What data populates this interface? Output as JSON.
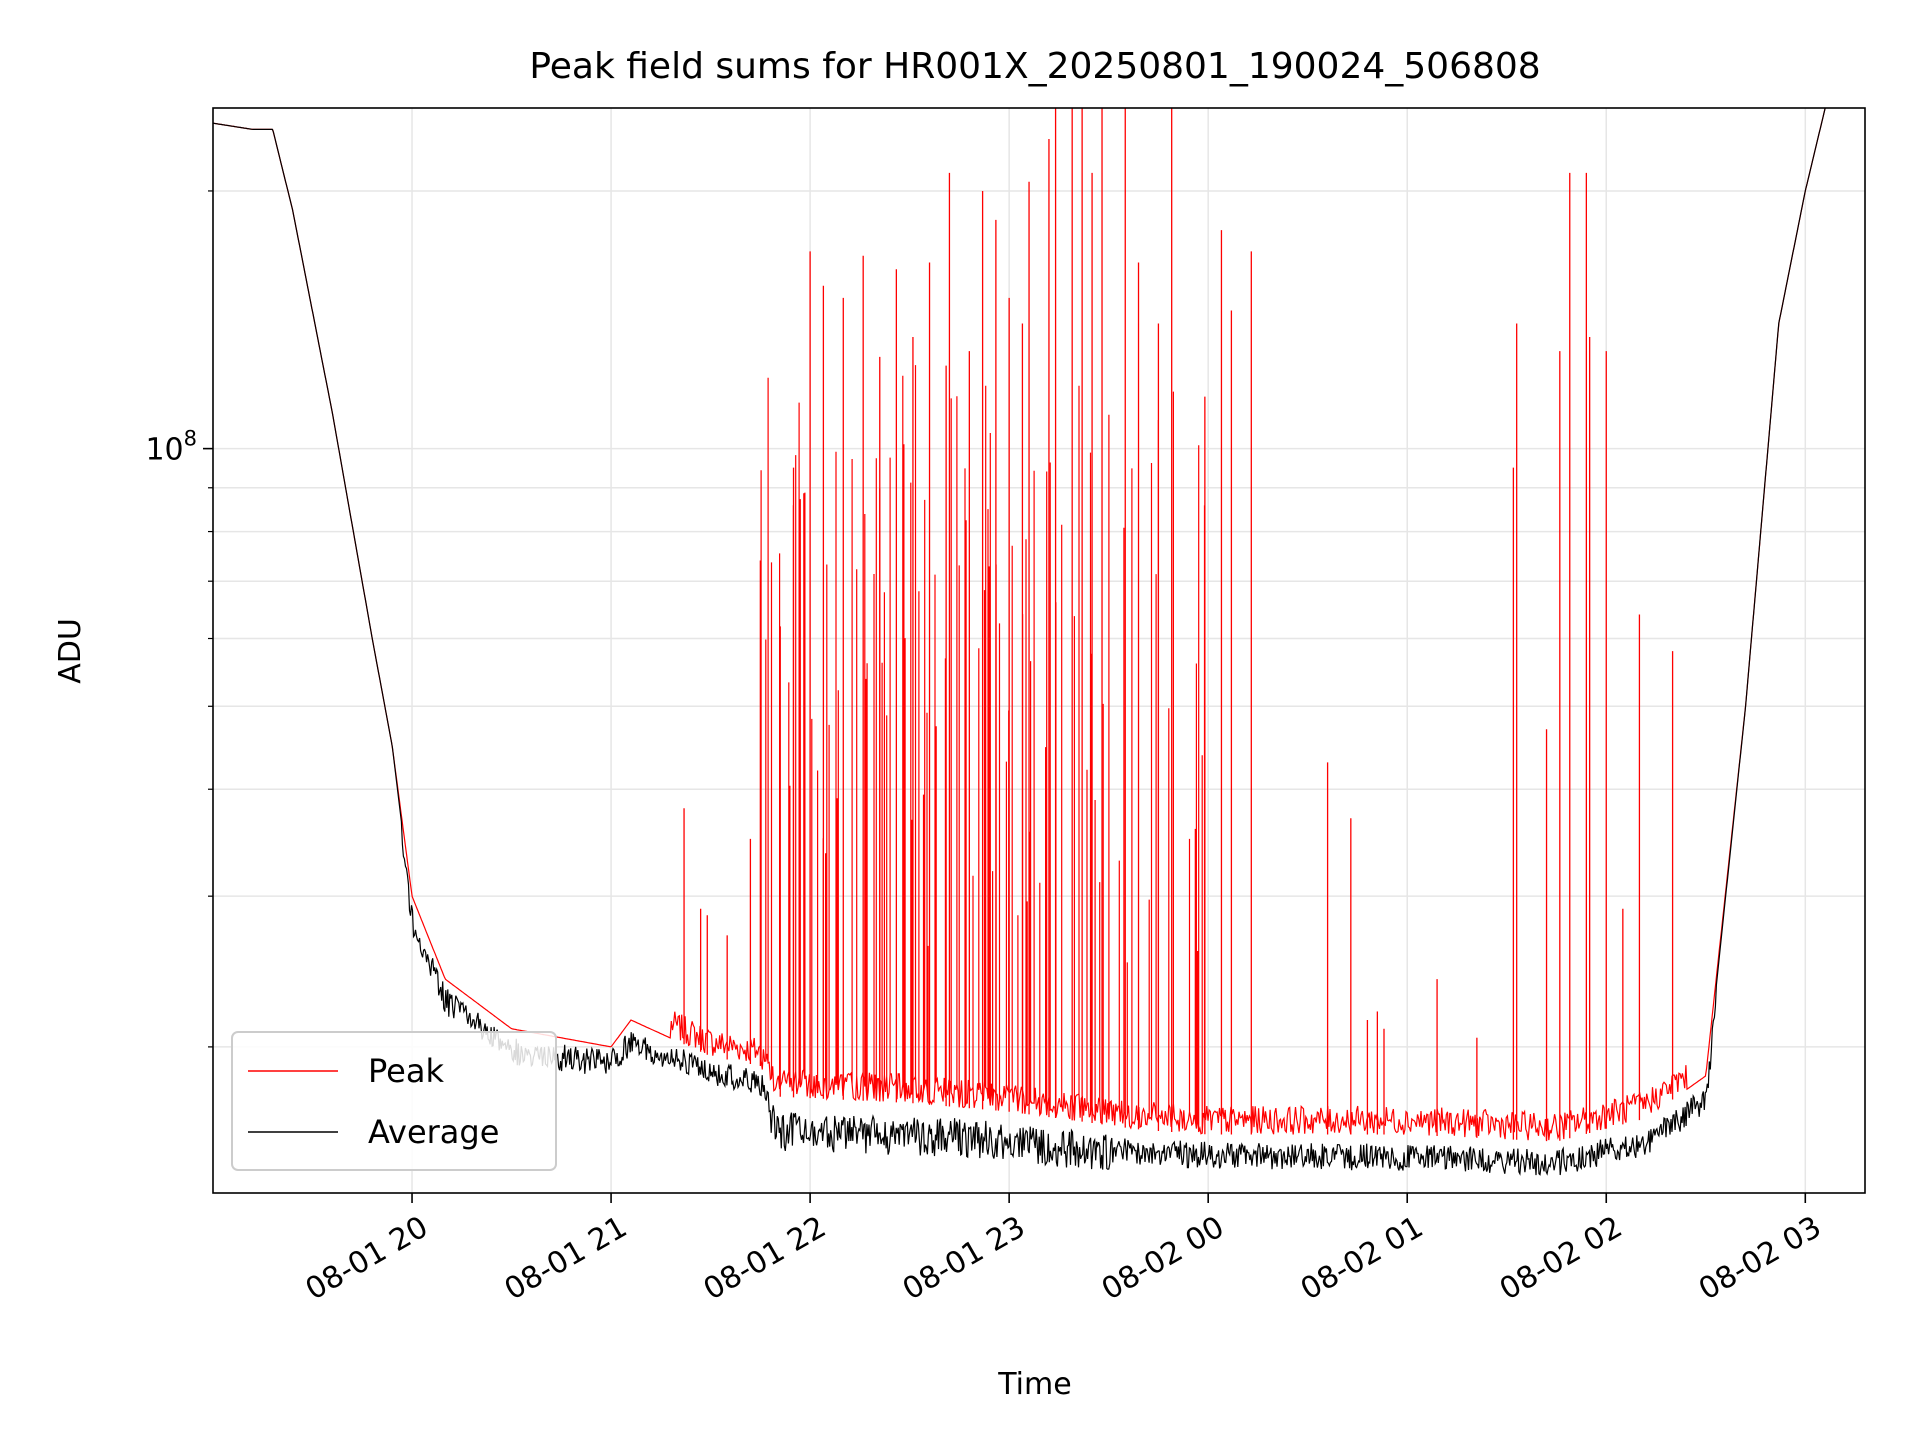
{
  "chart_data": {
    "type": "line",
    "title": "Peak field sums for HR001X_20250801_190024_506808",
    "xlabel": "Time",
    "ylabel": "ADU",
    "yscale": "log",
    "grid": true,
    "legend_placement": "lower-left",
    "x_tick_labels": [
      "08-01 20",
      "08-01 21",
      "08-01 22",
      "08-01 23",
      "08-02 00",
      "08-02 01",
      "08-02 02",
      "08-02 03"
    ],
    "x_ticks": [
      "2025-08-01 20:00",
      "2025-08-01 21:00",
      "2025-08-01 22:00",
      "2025-08-01 23:00",
      "2025-08-02 00:00",
      "2025-08-02 01:00",
      "2025-08-02 02:00",
      "2025-08-02 03:00"
    ],
    "xlim": [
      "2025-08-01 19:00",
      "2025-08-02 03:18"
    ],
    "y_tick_labels": [
      {
        "base": "10",
        "exp": "8"
      }
    ],
    "y_ticks": [
      100000000
    ],
    "ylim": [
      13500000,
      250000000
    ],
    "series": [
      {
        "name": "Peak",
        "color": "#ff0000",
        "points": [
          [
            "2025-08-01 19:00",
            240000000
          ],
          [
            "2025-08-01 19:12",
            236000000
          ],
          [
            "2025-08-01 19:18",
            236000000
          ],
          [
            "2025-08-01 19:24",
            190000000
          ],
          [
            "2025-08-01 19:36",
            110000000
          ],
          [
            "2025-08-01 19:48",
            60000000
          ],
          [
            "2025-08-01 19:54",
            45000000
          ],
          [
            "2025-08-01 20:00",
            30000000
          ],
          [
            "2025-08-01 20:10",
            24000000
          ],
          [
            "2025-08-01 20:30",
            21000000
          ],
          [
            "2025-08-01 21:00",
            20000000
          ],
          [
            "2025-08-01 21:06",
            21500000
          ],
          [
            "2025-08-01 21:30",
            19500000
          ],
          [
            "2025-08-01 21:45",
            19000000
          ],
          [
            "2025-08-01 21:50",
            17500000
          ],
          [
            "2025-08-01 22:30",
            17200000
          ],
          [
            "2025-08-01 23:00",
            16800000
          ],
          [
            "2025-08-01 23:40",
            16000000
          ],
          [
            "2025-08-02 00:00",
            15800000
          ],
          [
            "2025-08-02 01:00",
            15800000
          ],
          [
            "2025-08-02 01:45",
            15500000
          ],
          [
            "2025-08-02 02:12",
            16500000
          ],
          [
            "2025-08-02 02:30",
            18500000
          ],
          [
            "2025-08-02 02:42",
            50000000
          ],
          [
            "2025-08-02 02:52",
            140000000
          ],
          [
            "2025-08-02 03:00",
            200000000
          ],
          [
            "2025-08-02 03:06",
            250000000
          ]
        ],
        "spikes": [
          [
            "2025-08-01 21:22",
            38000000
          ],
          [
            "2025-08-01 21:27",
            29000000
          ],
          [
            "2025-08-01 21:29",
            28500000
          ],
          [
            "2025-08-01 21:35",
            27000000
          ],
          [
            "2025-08-01 21:42",
            35000000
          ],
          [
            "2025-08-01 21:45",
            74000000
          ],
          [
            "2025-08-01 21:51",
            62000000
          ],
          [
            "2025-08-01 21:55",
            95000000
          ],
          [
            "2025-08-01 22:00",
            170000000
          ],
          [
            "2025-08-01 22:04",
            155000000
          ],
          [
            "2025-08-01 22:10",
            150000000
          ],
          [
            "2025-08-01 22:16",
            168000000
          ],
          [
            "2025-08-01 22:21",
            128000000
          ],
          [
            "2025-08-01 22:26",
            162000000
          ],
          [
            "2025-08-01 22:31",
            135000000
          ],
          [
            "2025-08-01 22:36",
            165000000
          ],
          [
            "2025-08-01 22:41",
            125000000
          ],
          [
            "2025-08-01 22:42",
            210000000
          ],
          [
            "2025-08-01 22:48",
            130000000
          ],
          [
            "2025-08-01 22:52",
            200000000
          ],
          [
            "2025-08-01 22:56",
            185000000
          ],
          [
            "2025-08-01 23:00",
            150000000
          ],
          [
            "2025-08-01 23:04",
            140000000
          ],
          [
            "2025-08-01 23:06",
            205000000
          ],
          [
            "2025-08-01 23:12",
            230000000
          ],
          [
            "2025-08-01 23:14",
            250000000
          ],
          [
            "2025-08-01 23:19",
            250000000
          ],
          [
            "2025-08-01 23:22",
            250000000
          ],
          [
            "2025-08-01 23:25",
            210000000
          ],
          [
            "2025-08-01 23:28",
            250000000
          ],
          [
            "2025-08-01 23:35",
            250000000
          ],
          [
            "2025-08-01 23:39",
            165000000
          ],
          [
            "2025-08-01 23:45",
            140000000
          ],
          [
            "2025-08-01 23:49",
            250000000
          ],
          [
            "2025-08-01 23:59",
            115000000
          ],
          [
            "2025-08-02 00:04",
            180000000
          ],
          [
            "2025-08-02 00:07",
            145000000
          ],
          [
            "2025-08-02 00:13",
            170000000
          ],
          [
            "2025-08-02 00:36",
            43000000
          ],
          [
            "2025-08-02 00:43",
            37000000
          ],
          [
            "2025-08-02 00:48",
            21500000
          ],
          [
            "2025-08-02 00:51",
            22000000
          ],
          [
            "2025-08-02 00:53",
            21000000
          ],
          [
            "2025-08-02 01:09",
            24000000
          ],
          [
            "2025-08-02 01:21",
            20500000
          ],
          [
            "2025-08-02 01:32",
            95000000
          ],
          [
            "2025-08-02 01:33",
            140000000
          ],
          [
            "2025-08-02 01:42",
            47000000
          ],
          [
            "2025-08-02 01:46",
            130000000
          ],
          [
            "2025-08-02 01:49",
            210000000
          ],
          [
            "2025-08-02 01:54",
            210000000
          ],
          [
            "2025-08-02 01:55",
            135000000
          ],
          [
            "2025-08-02 02:00",
            130000000
          ],
          [
            "2025-08-02 02:05",
            29000000
          ],
          [
            "2025-08-02 02:10",
            64000000
          ],
          [
            "2025-08-02 02:20",
            58000000
          ]
        ]
      },
      {
        "name": "Average",
        "color": "#000000",
        "points": [
          [
            "2025-08-01 19:00",
            240000000
          ],
          [
            "2025-08-01 19:12",
            236000000
          ],
          [
            "2025-08-01 19:18",
            236000000
          ],
          [
            "2025-08-01 19:24",
            190000000
          ],
          [
            "2025-08-01 19:36",
            110000000
          ],
          [
            "2025-08-01 19:48",
            60000000
          ],
          [
            "2025-08-01 19:54",
            45000000
          ],
          [
            "2025-08-01 20:00",
            29000000
          ],
          [
            "2025-08-01 20:10",
            23500000
          ],
          [
            "2025-08-01 20:30",
            20500000
          ],
          [
            "2025-08-01 21:00",
            19800000
          ],
          [
            "2025-08-01 21:06",
            21000000
          ],
          [
            "2025-08-01 21:30",
            19300000
          ],
          [
            "2025-08-01 21:45",
            18800000
          ],
          [
            "2025-08-01 21:50",
            16800000
          ],
          [
            "2025-08-01 22:30",
            16600000
          ],
          [
            "2025-08-01 23:00",
            16400000
          ],
          [
            "2025-08-01 23:40",
            15600000
          ],
          [
            "2025-08-02 00:00",
            15500000
          ],
          [
            "2025-08-02 01:00",
            15400000
          ],
          [
            "2025-08-02 01:45",
            15200000
          ],
          [
            "2025-08-02 02:12",
            16000000
          ],
          [
            "2025-08-02 02:30",
            18000000
          ],
          [
            "2025-08-02 02:42",
            50000000
          ],
          [
            "2025-08-02 02:52",
            140000000
          ],
          [
            "2025-08-02 03:00",
            200000000
          ],
          [
            "2025-08-02 03:06",
            250000000
          ]
        ]
      }
    ]
  }
}
